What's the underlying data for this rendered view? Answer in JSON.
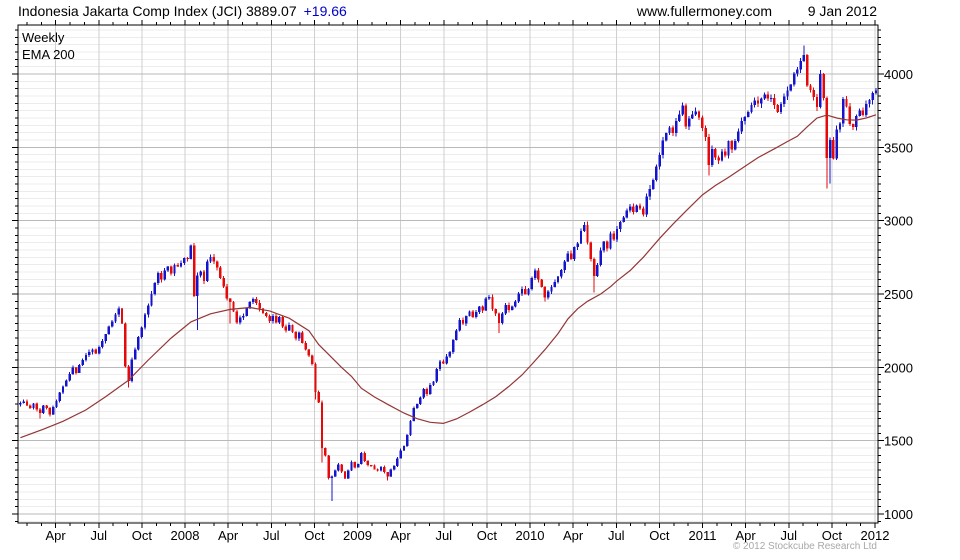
{
  "header": {
    "title": "Indonesia Jakarta Comp Index (JCI) 3889.07",
    "change": "+19.66",
    "website": "www.fullermoney.com",
    "date": "9 Jan 2012"
  },
  "legend": {
    "series_label": "Weekly",
    "overlay_label": "EMA 200"
  },
  "footer": {
    "copyright": "© 2012 Stockcube Research Ltd"
  },
  "colors": {
    "up_candle": "#1414cc",
    "down_candle": "#e60909",
    "ema_line": "#943636",
    "change_text": "#0000cc",
    "legend_series": "#0000bb",
    "grid_minor": "#ececec",
    "grid_major": "#b9b9b9",
    "grid_vertical": "#cfcfcf",
    "frame": "#000000",
    "copyright_text": "#a8a8a8"
  },
  "chart_data": {
    "type": "candlestick",
    "title": "Indonesia Jakarta Comp Index (JCI)",
    "timeframe": "Weekly",
    "overlay": "EMA 200",
    "last_close": 3889.07,
    "change": 19.66,
    "date_shown": "9 Jan 2012",
    "x_axis": {
      "start": "Jan 2007",
      "end": "Jan 2012",
      "months_total": 60,
      "ticks": [
        {
          "month": 3,
          "label": "Apr"
        },
        {
          "month": 6,
          "label": "Jul"
        },
        {
          "month": 9,
          "label": "Oct"
        },
        {
          "month": 12,
          "label": "2008"
        },
        {
          "month": 15,
          "label": "Apr"
        },
        {
          "month": 18,
          "label": "Jul"
        },
        {
          "month": 21,
          "label": "Oct"
        },
        {
          "month": 24,
          "label": "2009"
        },
        {
          "month": 27,
          "label": "Apr"
        },
        {
          "month": 30,
          "label": "Jul"
        },
        {
          "month": 33,
          "label": "Oct"
        },
        {
          "month": 36,
          "label": "2010"
        },
        {
          "month": 39,
          "label": "Apr"
        },
        {
          "month": 42,
          "label": "Jul"
        },
        {
          "month": 45,
          "label": "Oct"
        },
        {
          "month": 48,
          "label": "2011"
        },
        {
          "month": 51,
          "label": "Apr"
        },
        {
          "month": 54,
          "label": "Jul"
        },
        {
          "month": 57,
          "label": "Oct"
        },
        {
          "month": 60,
          "label": "2012"
        }
      ]
    },
    "y_axis": {
      "min": 939,
      "max": 4334,
      "major_step": 500,
      "minor_step": 50,
      "grid": true,
      "labels_side": "right",
      "ticks": [
        {
          "value": 1000,
          "label": "1000"
        },
        {
          "value": 1500,
          "label": "1500"
        },
        {
          "value": 2000,
          "label": "2000"
        },
        {
          "value": 2500,
          "label": "2500"
        },
        {
          "value": 3000,
          "label": "3000"
        },
        {
          "value": 3500,
          "label": "3500"
        },
        {
          "value": 4000,
          "label": "4000"
        }
      ]
    },
    "first_open": 1745,
    "weekly_closes": [
      1757,
      1768,
      1741,
      1723,
      1752,
      1711,
      1689,
      1740,
      1722,
      1678,
      1730,
      1770,
      1830,
      1871,
      1910,
      1956,
      1999,
      1963,
      2015,
      2049,
      2084,
      2104,
      2122,
      2095,
      2139,
      2178,
      2226,
      2279,
      2313,
      2359,
      2401,
      2298,
      2006,
      1908,
      2055,
      2121,
      2208,
      2270,
      2359,
      2420,
      2500,
      2576,
      2643,
      2598,
      2660,
      2688,
      2641,
      2698,
      2688,
      2710,
      2745,
      2739,
      2830,
      2485,
      2627,
      2654,
      2589,
      2721,
      2751,
      2721,
      2680,
      2608,
      2550,
      2469,
      2447,
      2381,
      2304,
      2339,
      2350,
      2405,
      2444,
      2465,
      2440,
      2400,
      2371,
      2349,
      2316,
      2349,
      2305,
      2343,
      2280,
      2252,
      2290,
      2241,
      2195,
      2236,
      2165,
      2122,
      2080,
      2023,
      1832,
      1760,
      1451,
      1399,
      1244,
      1257,
      1295,
      1338,
      1290,
      1241,
      1298,
      1355,
      1317,
      1340,
      1417,
      1360,
      1333,
      1332,
      1305,
      1296,
      1320,
      1285,
      1257,
      1305,
      1328,
      1380,
      1434,
      1465,
      1540,
      1634,
      1722,
      1751,
      1796,
      1851,
      1817,
      1881,
      1903,
      1990,
      2040,
      2026,
      2075,
      2106,
      2185,
      2251,
      2323,
      2298,
      2349,
      2380,
      2342,
      2377,
      2415,
      2389,
      2468,
      2480,
      2399,
      2368,
      2302,
      2368,
      2426,
      2390,
      2416,
      2450,
      2502,
      2534,
      2498,
      2534,
      2610,
      2661,
      2598,
      2549,
      2475,
      2518,
      2549,
      2581,
      2620,
      2662,
      2721,
      2777,
      2739,
      2819,
      2845,
      2931,
      2971,
      2850,
      2739,
      2623,
      2697,
      2797,
      2858,
      2810,
      2913,
      2871,
      2943,
      2992,
      3023,
      3069,
      3096,
      3060,
      3105,
      3082,
      3042,
      3164,
      3217,
      3279,
      3369,
      3447,
      3546,
      3598,
      3635,
      3597,
      3680,
      3725,
      3786,
      3642,
      3696,
      3725,
      3745,
      3704,
      3632,
      3569,
      3379,
      3487,
      3432,
      3410,
      3470,
      3443,
      3542,
      3485,
      3543,
      3607,
      3678,
      3707,
      3741,
      3788,
      3819,
      3798,
      3832,
      3861,
      3832,
      3836,
      3787,
      3740,
      3794,
      3848,
      3888,
      3928,
      4003,
      4032,
      4087,
      4130,
      3921,
      3890,
      3842,
      3775,
      3999,
      3835,
      3426,
      3549,
      3425,
      3620,
      3664,
      3829,
      3778,
      3658,
      3637,
      3715,
      3751,
      3722,
      3794,
      3822,
      3869,
      3889
    ],
    "wick_lows": {
      "6": 1650,
      "33": 1863,
      "54": 2254,
      "64": 2300,
      "90": 1780,
      "92": 1350,
      "95": 1089,
      "112": 1230,
      "146": 2235,
      "160": 2450,
      "175": 2510,
      "210": 3309,
      "246": 3218,
      "247": 3255
    },
    "wick_highs": {
      "30": 2415,
      "52": 2838,
      "157": 2675,
      "202": 3805,
      "239": 4196
    },
    "ema_points": [
      [
        0,
        1520
      ],
      [
        7,
        1578
      ],
      [
        13,
        1632
      ],
      [
        20,
        1710
      ],
      [
        26,
        1800
      ],
      [
        33,
        1912
      ],
      [
        39,
        2050
      ],
      [
        46,
        2200
      ],
      [
        52,
        2310
      ],
      [
        58,
        2365
      ],
      [
        64,
        2395
      ],
      [
        70,
        2408
      ],
      [
        76,
        2385
      ],
      [
        82,
        2335
      ],
      [
        88,
        2250
      ],
      [
        91,
        2155
      ],
      [
        94,
        2088
      ],
      [
        98,
        1998
      ],
      [
        101,
        1938
      ],
      [
        104,
        1858
      ],
      [
        108,
        1798
      ],
      [
        112,
        1748
      ],
      [
        117,
        1688
      ],
      [
        121,
        1650
      ],
      [
        125,
        1625
      ],
      [
        129,
        1618
      ],
      [
        133,
        1648
      ],
      [
        137,
        1695
      ],
      [
        141,
        1745
      ],
      [
        145,
        1800
      ],
      [
        149,
        1870
      ],
      [
        153,
        1948
      ],
      [
        156,
        2020
      ],
      [
        160,
        2120
      ],
      [
        164,
        2230
      ],
      [
        167,
        2330
      ],
      [
        170,
        2400
      ],
      [
        173,
        2450
      ],
      [
        177,
        2500
      ],
      [
        180,
        2550
      ],
      [
        182,
        2590
      ],
      [
        186,
        2660
      ],
      [
        190,
        2750
      ],
      [
        195,
        2880
      ],
      [
        199,
        2975
      ],
      [
        203,
        3065
      ],
      [
        208,
        3175
      ],
      [
        212,
        3240
      ],
      [
        216,
        3295
      ],
      [
        221,
        3370
      ],
      [
        225,
        3430
      ],
      [
        230,
        3490
      ],
      [
        234,
        3540
      ],
      [
        237,
        3575
      ],
      [
        240,
        3640
      ],
      [
        243,
        3700
      ],
      [
        246,
        3720
      ],
      [
        249,
        3700
      ],
      [
        252,
        3688
      ],
      [
        255,
        3686
      ],
      [
        258,
        3700
      ],
      [
        261,
        3722
      ]
    ]
  }
}
